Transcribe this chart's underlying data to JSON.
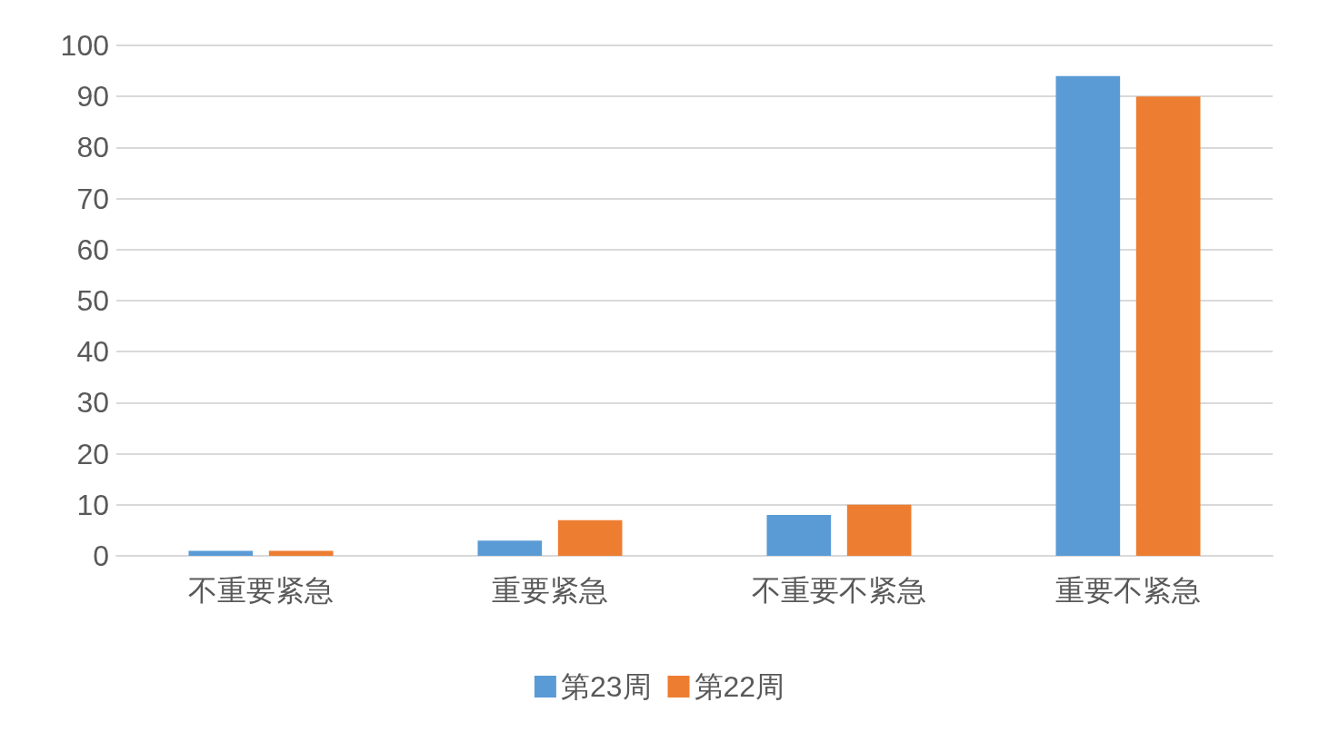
{
  "chart_data": {
    "type": "bar",
    "categories": [
      "不重要紧急",
      "重要紧急",
      "不重要不紧急",
      "重要不紧急"
    ],
    "series": [
      {
        "name": "第23周",
        "color": "#5b9bd5",
        "values": [
          1,
          3,
          8,
          94
        ]
      },
      {
        "name": "第22周",
        "color": "#ed7d31",
        "values": [
          1,
          7,
          10,
          90
        ]
      }
    ],
    "ylim": [
      0,
      100
    ],
    "yticks": [
      0,
      10,
      20,
      30,
      40,
      50,
      60,
      70,
      80,
      90,
      100
    ],
    "grid": "y",
    "legend": "bottom"
  }
}
